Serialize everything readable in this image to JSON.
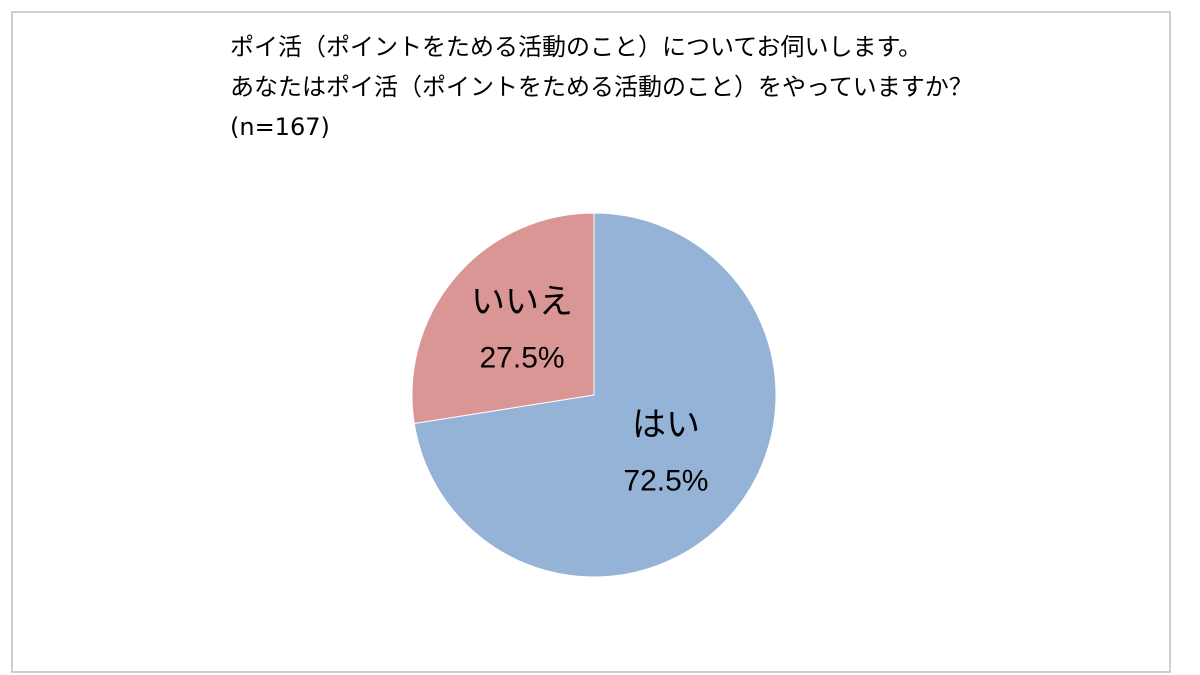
{
  "chart_data": {
    "type": "pie",
    "title": [
      "ポイ活（ポイントをためる活動のこと）についてお伺いします。",
      "あなたはポイ活（ポイントをためる活動のこと）をやっていますか？"
    ],
    "subtitle": "(n=167)",
    "categories": [
      "はい",
      "いいえ"
    ],
    "values": [
      72.5,
      27.5
    ],
    "value_labels": [
      "72.5%",
      "27.5%"
    ],
    "colors": [
      "#95b3d7",
      "#d99694"
    ]
  }
}
